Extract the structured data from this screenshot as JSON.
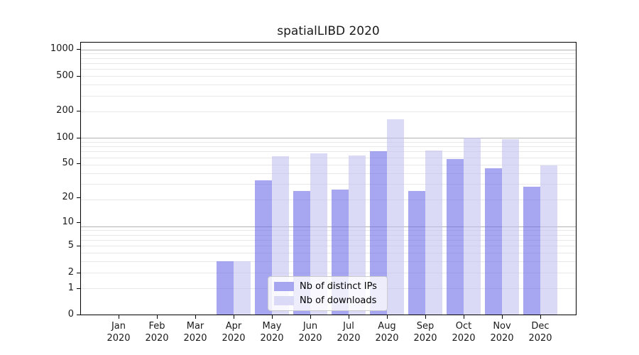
{
  "title": "spatialLIBD 2020",
  "chart_data": {
    "type": "bar",
    "title": "spatialLIBD 2020",
    "y_scale": "log1p",
    "ylim": [
      0,
      1170
    ],
    "y_ticks": [
      0,
      1,
      2,
      5,
      10,
      20,
      50,
      100,
      200,
      500,
      1000
    ],
    "grid": "horizontal, minor light + major at decades",
    "legend_position": "lower-center",
    "x_months": [
      "Jan",
      "Feb",
      "Mar",
      "Apr",
      "May",
      "Jun",
      "Jul",
      "Aug",
      "Sep",
      "Oct",
      "Nov",
      "Dec"
    ],
    "x_year": "2020",
    "categories": [
      "Jan 2020",
      "Feb 2020",
      "Mar 2020",
      "Apr 2020",
      "May 2020",
      "Jun 2020",
      "Jul 2020",
      "Aug 2020",
      "Sep 2020",
      "Oct 2020",
      "Nov 2020",
      "Dec 2020"
    ],
    "series": [
      {
        "name": "Nb of distinct IPs",
        "bar_color": "#6a6ae8",
        "legend_color": "#a5a5f0",
        "values": [
          0,
          0,
          0,
          3,
          32,
          24,
          25,
          69,
          24,
          57,
          44,
          27
        ]
      },
      {
        "name": "Nb of downloads",
        "bar_color": "#c1c1f2",
        "legend_color": "#dadaf7",
        "values": [
          0,
          0,
          0,
          3,
          61,
          66,
          62,
          160,
          71,
          100,
          96,
          48
        ]
      }
    ]
  },
  "legend": {
    "items": [
      {
        "label": "Nb of distinct IPs"
      },
      {
        "label": "Nb of downloads"
      }
    ]
  },
  "colors": {
    "background": "#ffffff",
    "axis": "#000000",
    "text": "#1a1a1a",
    "major_grid": "#b2b2b2",
    "minor_grid": "#e8e8e8"
  }
}
